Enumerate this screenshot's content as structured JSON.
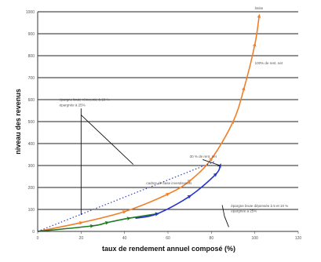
{
  "chart_data": {
    "type": "line",
    "xlabel": "taux de rendement annuel composé (%)",
    "ylabel": "niveau des revenus",
    "x_ticks": [
      "0",
      "20",
      "40",
      "60",
      "80",
      "100",
      "120"
    ],
    "y_ticks": [
      "0",
      "100",
      "200",
      "300",
      "400",
      "500",
      "600",
      "700",
      "800",
      "900",
      "1000"
    ],
    "xlim": [
      0,
      120
    ],
    "ylim": [
      0,
      1000
    ],
    "grid": "horizontal",
    "series": [
      {
        "color": "#f07f2a",
        "x": [
          0,
          20,
          40,
          60,
          70,
          80,
          90,
          95,
          100,
          102
        ],
        "y": [
          0,
          40,
          90,
          170,
          230,
          330,
          500,
          650,
          850,
          980
        ]
      },
      {
        "color": "#1f7a1f",
        "x": [
          0,
          25,
          32,
          42,
          55
        ],
        "y": [
          0,
          25,
          40,
          60,
          80
        ]
      },
      {
        "color": "#2233cc",
        "x": [
          45,
          55,
          70,
          82,
          84
        ],
        "y": [
          60,
          80,
          160,
          260,
          300
        ]
      },
      {
        "color": "#3344bb",
        "style": "dotted",
        "x": [
          0,
          82
        ],
        "y": [
          0,
          320
        ]
      }
    ],
    "annotations": [
      {
        "text": "limite",
        "x": 100,
        "y": 1010
      },
      {
        "text": "100% de rent. net",
        "x": 100,
        "y": 760
      },
      {
        "text": "épargne brute réinvestie à 10 %",
        "x": 10,
        "y": 595
      },
      {
        "text": "épargnée à 25%",
        "x": 10,
        "y": 570
      },
      {
        "text": "30 % de rent. net",
        "x": 70,
        "y": 335
      },
      {
        "text": "cadres de base investisseurs",
        "x": 50,
        "y": 215
      },
      {
        "text": "épargne brute dépensée à 5 et 10 %",
        "x": 89,
        "y": 110
      },
      {
        "text": "épargnée à 25%",
        "x": 89,
        "y": 88
      }
    ]
  }
}
